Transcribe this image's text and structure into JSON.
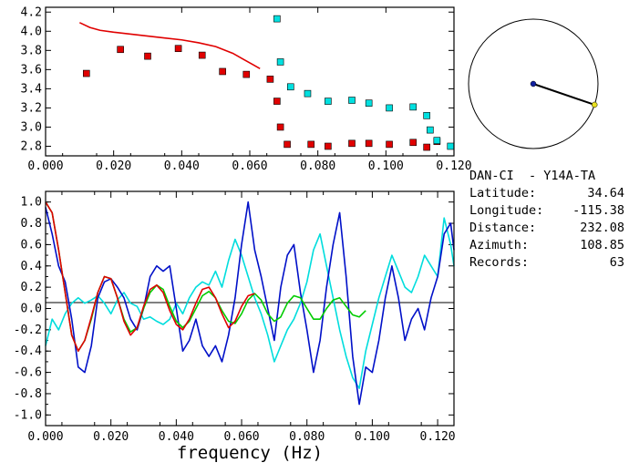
{
  "chart_data": [
    {
      "type": "scatter",
      "panel": "top",
      "xlim": [
        0.0,
        0.12
      ],
      "ylim": [
        2.7,
        4.25
      ],
      "xticks": [
        "0.000",
        "0.020",
        "0.040",
        "0.060",
        "0.080",
        "0.100",
        "0.120"
      ],
      "yticks": [
        "2.8",
        "3.0",
        "3.2",
        "3.4",
        "3.6",
        "3.8",
        "4.0",
        "4.2"
      ],
      "colors": {
        "line": "#e00000",
        "red_points": "#e00000",
        "cyan_points": "#00e0e0"
      },
      "line": {
        "x": [
          0.01,
          0.013,
          0.016,
          0.02,
          0.025,
          0.03,
          0.035,
          0.04,
          0.045,
          0.05,
          0.055,
          0.058,
          0.061,
          0.063
        ],
        "y": [
          4.09,
          4.04,
          4.01,
          3.99,
          3.97,
          3.95,
          3.93,
          3.91,
          3.88,
          3.84,
          3.77,
          3.71,
          3.65,
          3.61
        ]
      },
      "red_points": {
        "x": [
          0.012,
          0.022,
          0.03,
          0.039,
          0.046,
          0.052,
          0.059,
          0.066,
          0.068,
          0.069,
          0.071,
          0.078,
          0.083,
          0.09,
          0.095,
          0.101,
          0.108,
          0.112,
          0.115
        ],
        "y": [
          3.56,
          3.81,
          3.74,
          3.82,
          3.75,
          3.58,
          3.55,
          3.5,
          3.27,
          3.0,
          2.82,
          2.82,
          2.8,
          2.83,
          2.83,
          2.82,
          2.84,
          2.79,
          2.85
        ]
      },
      "cyan_points": {
        "x": [
          0.068,
          0.069,
          0.072,
          0.077,
          0.083,
          0.09,
          0.095,
          0.101,
          0.108,
          0.112,
          0.113,
          0.115,
          0.119
        ],
        "y": [
          4.13,
          3.68,
          3.42,
          3.35,
          3.27,
          3.28,
          3.25,
          3.2,
          3.21,
          3.12,
          2.97,
          2.86,
          2.8
        ]
      }
    },
    {
      "type": "line",
      "panel": "bottom",
      "xlim": [
        0.0,
        0.125
      ],
      "ylim": [
        -1.1,
        1.1
      ],
      "xlabel": "frequency (Hz)",
      "xticks": [
        "0.000",
        "0.020",
        "0.040",
        "0.060",
        "0.080",
        "0.100",
        "0.120"
      ],
      "yticks": [
        "-1.0",
        "-0.8",
        "-0.6",
        "-0.4",
        "-0.2",
        "0.0",
        "0.2",
        "0.4",
        "0.6",
        "0.8",
        "1.0"
      ],
      "series": [
        {
          "color": "#00dddd",
          "x": [
            0.0,
            0.002,
            0.004,
            0.006,
            0.008,
            0.01,
            0.012,
            0.014,
            0.016,
            0.018,
            0.02,
            0.022,
            0.024,
            0.026,
            0.028,
            0.03,
            0.032,
            0.034,
            0.036,
            0.038,
            0.04,
            0.042,
            0.044,
            0.046,
            0.048,
            0.05,
            0.052,
            0.054,
            0.056,
            0.058,
            0.06,
            0.062,
            0.064,
            0.066,
            0.068,
            0.07,
            0.072,
            0.074,
            0.076,
            0.078,
            0.08,
            0.082,
            0.084,
            0.086,
            0.088,
            0.09,
            0.092,
            0.094,
            0.096,
            0.098,
            0.1,
            0.102,
            0.104,
            0.106,
            0.108,
            0.11,
            0.112,
            0.114,
            0.116,
            0.118,
            0.12,
            0.122,
            0.124,
            0.125
          ],
          "y": [
            -0.35,
            -0.1,
            -0.2,
            -0.05,
            0.05,
            0.1,
            0.05,
            0.08,
            0.12,
            0.05,
            -0.05,
            0.08,
            0.15,
            0.05,
            0.02,
            -0.1,
            -0.08,
            -0.12,
            -0.15,
            -0.1,
            0.05,
            -0.05,
            0.1,
            0.2,
            0.25,
            0.22,
            0.35,
            0.2,
            0.45,
            0.65,
            0.5,
            0.3,
            0.1,
            -0.05,
            -0.25,
            -0.5,
            -0.35,
            -0.2,
            -0.1,
            0.05,
            0.25,
            0.55,
            0.7,
            0.4,
            0.1,
            -0.2,
            -0.45,
            -0.65,
            -0.75,
            -0.4,
            -0.15,
            0.1,
            0.3,
            0.5,
            0.35,
            0.2,
            0.15,
            0.3,
            0.5,
            0.4,
            0.3,
            0.85,
            0.6,
            0.4
          ]
        },
        {
          "color": "#0010c8",
          "x": [
            0.0,
            0.002,
            0.004,
            0.006,
            0.008,
            0.01,
            0.012,
            0.014,
            0.016,
            0.018,
            0.02,
            0.022,
            0.024,
            0.026,
            0.028,
            0.03,
            0.032,
            0.034,
            0.036,
            0.038,
            0.04,
            0.042,
            0.044,
            0.046,
            0.048,
            0.05,
            0.052,
            0.054,
            0.056,
            0.058,
            0.06,
            0.062,
            0.064,
            0.066,
            0.068,
            0.07,
            0.072,
            0.074,
            0.076,
            0.078,
            0.08,
            0.082,
            0.084,
            0.086,
            0.088,
            0.09,
            0.092,
            0.094,
            0.096,
            0.098,
            0.1,
            0.102,
            0.104,
            0.106,
            0.108,
            0.11,
            0.112,
            0.114,
            0.116,
            0.118,
            0.12,
            0.122,
            0.124,
            0.125
          ],
          "y": [
            0.95,
            0.7,
            0.4,
            0.25,
            -0.1,
            -0.55,
            -0.6,
            -0.35,
            0.1,
            0.25,
            0.28,
            0.2,
            0.1,
            -0.1,
            -0.2,
            0.0,
            0.3,
            0.4,
            0.35,
            0.4,
            0.0,
            -0.4,
            -0.3,
            -0.1,
            -0.35,
            -0.45,
            -0.35,
            -0.5,
            -0.25,
            0.1,
            0.6,
            1.0,
            0.55,
            0.3,
            0.0,
            -0.3,
            0.2,
            0.5,
            0.6,
            0.15,
            -0.2,
            -0.6,
            -0.3,
            0.2,
            0.6,
            0.9,
            0.3,
            -0.45,
            -0.9,
            -0.55,
            -0.6,
            -0.3,
            0.1,
            0.4,
            0.1,
            -0.3,
            -0.1,
            0.0,
            -0.2,
            0.1,
            0.3,
            0.7,
            0.8,
            0.55
          ]
        },
        {
          "color": "#00cc00",
          "x": [
            0.0,
            0.002,
            0.004,
            0.006,
            0.008,
            0.01,
            0.012,
            0.014,
            0.016,
            0.018,
            0.02,
            0.022,
            0.024,
            0.026,
            0.028,
            0.03,
            0.032,
            0.034,
            0.036,
            0.038,
            0.04,
            0.042,
            0.044,
            0.046,
            0.048,
            0.05,
            0.052,
            0.054,
            0.056,
            0.058,
            0.06,
            0.062,
            0.064,
            0.066,
            0.068,
            0.07,
            0.072,
            0.074,
            0.076,
            0.078,
            0.08,
            0.082,
            0.084,
            0.086,
            0.088,
            0.09,
            0.092,
            0.094,
            0.096,
            0.098
          ],
          "y": [
            1.0,
            0.9,
            0.55,
            0.15,
            -0.25,
            -0.4,
            -0.3,
            -0.1,
            0.15,
            0.3,
            0.28,
            0.1,
            -0.1,
            -0.22,
            -0.18,
            0.0,
            0.15,
            0.22,
            0.18,
            0.02,
            -0.12,
            -0.18,
            -0.12,
            0.0,
            0.12,
            0.16,
            0.1,
            -0.02,
            -0.12,
            -0.14,
            -0.05,
            0.08,
            0.14,
            0.08,
            -0.05,
            -0.12,
            -0.08,
            0.05,
            0.12,
            0.1,
            0.0,
            -0.1,
            -0.1,
            0.0,
            0.08,
            0.1,
            0.02,
            -0.06,
            -0.08,
            -0.02
          ]
        },
        {
          "color": "#e00000",
          "x": [
            0.0,
            0.002,
            0.004,
            0.006,
            0.008,
            0.01,
            0.012,
            0.014,
            0.016,
            0.018,
            0.02,
            0.022,
            0.024,
            0.026,
            0.028,
            0.03,
            0.032,
            0.034,
            0.036,
            0.038,
            0.04,
            0.042,
            0.044,
            0.046,
            0.048,
            0.05,
            0.052,
            0.054,
            0.056,
            0.058,
            0.06,
            0.062,
            0.064
          ],
          "y": [
            1.0,
            0.9,
            0.55,
            0.15,
            -0.25,
            -0.4,
            -0.3,
            -0.08,
            0.15,
            0.3,
            0.28,
            0.1,
            -0.12,
            -0.25,
            -0.18,
            0.02,
            0.18,
            0.22,
            0.15,
            -0.02,
            -0.15,
            -0.2,
            -0.1,
            0.05,
            0.18,
            0.2,
            0.1,
            -0.05,
            -0.18,
            -0.12,
            0.02,
            0.12,
            0.14
          ]
        }
      ]
    }
  ],
  "map": {
    "circle_color": "#000000",
    "line_color": "#000000",
    "center_dot_color": "#1020a0",
    "edge_dot_color": "#e8e020",
    "azimuth_deg": 108.85
  },
  "info": {
    "title": "DAN-CI  - Y14A-TA",
    "rows": [
      {
        "label": "Latitude:",
        "value": "34.64"
      },
      {
        "label": "Longitude:",
        "value": "-115.38"
      },
      {
        "label": "Distance:",
        "value": "232.08"
      },
      {
        "label": "Azimuth:",
        "value": "108.85"
      },
      {
        "label": "Records:",
        "value": "63"
      }
    ]
  }
}
